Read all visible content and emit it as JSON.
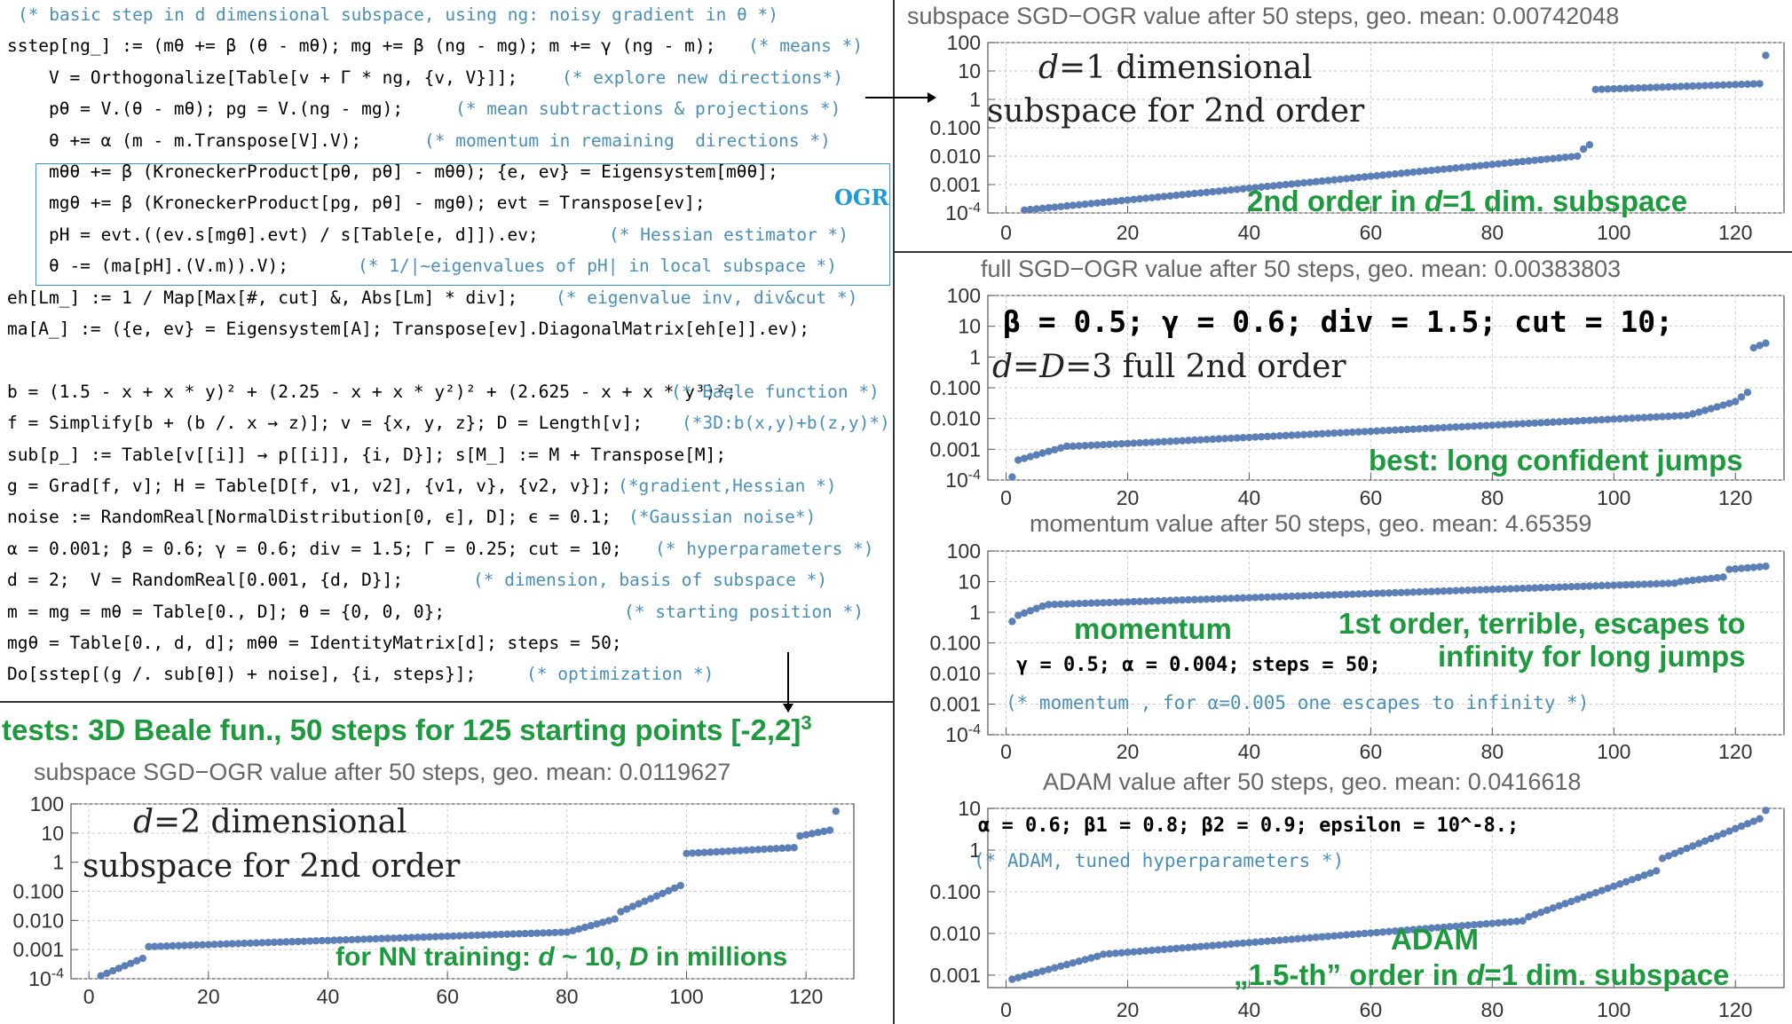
{
  "code_lines": [
    {
      "text": "",
      "comment": "(* basic step in d dimensional subspace, using ng: noisy gradient in θ *)"
    },
    {
      "text": "sstep[ng_] := (mθ += β (θ - mθ); mg += β (ng - mg); m += γ (ng - m);",
      "comment": "(* means *)"
    },
    {
      "text": "    V = Orthogonalize[Table[v + Γ * ng, {v, V}]];",
      "comment": "(* explore new directions*)"
    },
    {
      "text": "    pθ = V.(θ - mθ); pg = V.(ng - mg);",
      "comment": "(* mean subtractions & projections *)"
    },
    {
      "text": "    θ += α (m - m.Transpose[V].V);",
      "comment": "(* momentum in remaining  directions *)"
    },
    {
      "text": "    mθθ += β (KroneckerProduct[pθ, pθ] - mθθ); {e, ev} = Eigensystem[mθθ];",
      "comment": ""
    },
    {
      "text": "    mgθ += β (KroneckerProduct[pg, pθ] - mgθ); evt = Transpose[ev];",
      "comment": ""
    },
    {
      "text": "    pH = evt.((ev.s[mgθ].evt) / s[Table[e, d]]).ev;",
      "comment": "(* Hessian estimator *)"
    },
    {
      "text": "    θ -= (ma[pH].(V.m)).V);",
      "comment": "(* 1/|~eigenvalues of pH| in local subspace *)"
    },
    {
      "text": "eh[Lm_] := 1 / Map[Max[#, cut] &, Abs[Lm] * div];",
      "comment": "(* eigenvalue inv, div&cut *)"
    },
    {
      "text": "ma[A_] := ({e, ev} = Eigensystem[A]; Transpose[ev].DiagonalMatrix[eh[e]].ev);",
      "comment": ""
    },
    {
      "text": "",
      "comment": ""
    },
    {
      "text": "b = (1.5 - x + x * y)² + (2.25 - x + x * y²)² + (2.625 - x + x * y³)²;",
      "comment": "(* Baele function *)"
    },
    {
      "text": "f = Simplify[b + (b /. x → z)]; v = {x, y, z}; D = Length[v];",
      "comment": "(*3D:b(x,y)+b(z,y)*)"
    },
    {
      "text": "sub[p_] := Table[v[[i]] → p[[i]], {i, D}]; s[M_] := M + Transpose[M];",
      "comment": ""
    },
    {
      "text": "g = Grad[f, v]; H = Table[D[f, v1, v2], {v1, v}, {v2, v}];",
      "comment": "(*gradient,Hessian *)"
    },
    {
      "text": "noise := RandomReal[NormalDistribution[0, ϵ], D]; ϵ = 0.1;",
      "comment": "(*Gaussian noise*)"
    },
    {
      "text": "α = 0.001; β = 0.6; γ = 0.6; div = 1.5; Γ = 0.25; cut = 10;",
      "comment": "(* hyperparameters *)"
    },
    {
      "text": "d = 2;  V = RandomReal[0.001, {d, D}];",
      "comment": "(* dimension, basis of subspace *)"
    },
    {
      "text": "m = mg = mθ = Table[0., D]; θ = {0, 0, 0};",
      "comment": "(* starting position *)"
    },
    {
      "text": "mgθ = Table[0., d, d]; mθθ = IdentityMatrix[d]; steps = 50;",
      "comment": ""
    },
    {
      "text": "Do[sstep[(g /. sub[θ]) + noise], {i, steps}];",
      "comment": "(* optimization *)"
    }
  ],
  "ogr_label": "OGR",
  "tests_heading": "tests: 3D Beale fun., 50 steps for 125 starting points [-2,2]",
  "tests_sup": "3",
  "panels": {
    "p1": {
      "title": "subspace SGD−OGR value after 50 steps, geo. mean: 0.00742048",
      "serif1_a": "d",
      "serif1_b": "=1 dimensional",
      "serif2": "subspace for 2nd order",
      "green1_a": "2nd order in ",
      "green1_b": "d",
      "green1_c": "=1 dim. subspace"
    },
    "p2": {
      "title": "full SGD−OGR value after 50 steps, geo. mean: 0.00383803",
      "bold": "β = 0.5; γ = 0.6; div = 1.5; cut = 10;",
      "serif1_a": "d",
      "serif1_b": "=",
      "serif1_c": "D",
      "serif1_d": "=3 full 2nd order",
      "green1": "best: long confident jumps"
    },
    "p3": {
      "title": "momentum value after 50 steps, geo. mean: 4.65359",
      "green1": "momentum",
      "green2": "1st order, terrible, escapes to",
      "green3": "infinity for long jumps",
      "params": "γ = 0.5; α = 0.004; steps = 50;",
      "comment": "(* momentum , for α=0.005  one escapes to infinity *)"
    },
    "p4": {
      "title": "ADAM value after 50 steps, geo. mean: 0.0416618",
      "params": "α = 0.6; β1 = 0.8; β2 = 0.9; epsilon = 10^-8.;",
      "comment": "(* ADAM, tuned hyperparameters *)",
      "green1": "ADAM",
      "green2_a": "„1.5-th” order in ",
      "green2_b": "d",
      "green2_c": "=1 dim. subspace"
    },
    "p5": {
      "title": "subspace SGD−OGR value after 50 steps, geo. mean: 0.0119627",
      "serif1_a": "d",
      "serif1_b": "=2 dimensional",
      "serif2": "subspace for 2nd order",
      "green1_a": "for NN training: ",
      "green1_b": "d",
      "green1_c": " ~ 10, ",
      "green1_d": "D",
      "green1_e": " in millions"
    }
  },
  "chart_data": [
    {
      "type": "scatter",
      "id": "p1",
      "title": "subspace SGD−OGR value after 50 steps, geo. mean: 0.00742048",
      "x_ticks": [
        0,
        20,
        40,
        60,
        80,
        100,
        120
      ],
      "xlim": [
        -3,
        128
      ],
      "y_scale": "log",
      "y_ticks": [
        "100",
        "10",
        "1",
        "0.100",
        "0.010",
        "0.001",
        "10^-4"
      ],
      "ylim_log10": [
        -4,
        2
      ],
      "grid": true,
      "segments": [
        {
          "from": 3,
          "to": 94,
          "logy": [
            -3.9,
            -2.0
          ]
        },
        {
          "from": 95,
          "to": 96,
          "logy": [
            -1.75,
            -1.6
          ]
        },
        {
          "from": 97,
          "to": 124,
          "logy": [
            0.35,
            0.55
          ]
        },
        {
          "from": 125,
          "to": 125,
          "logy": [
            1.55,
            1.55
          ]
        }
      ]
    },
    {
      "type": "scatter",
      "id": "p2",
      "title": "full SGD−OGR value after 50 steps, geo. mean: 0.00383803",
      "x_ticks": [
        0,
        20,
        40,
        60,
        80,
        100,
        120
      ],
      "xlim": [
        -3,
        128
      ],
      "y_scale": "log",
      "y_ticks": [
        "100",
        "10",
        "1",
        "0.100",
        "0.010",
        "0.001",
        "10^-4"
      ],
      "ylim_log10": [
        -4,
        2
      ],
      "grid": true,
      "segments": [
        {
          "from": 1,
          "to": 1,
          "logy": [
            -3.9,
            -3.9
          ]
        },
        {
          "from": 2,
          "to": 10,
          "logy": [
            -3.35,
            -2.9
          ]
        },
        {
          "from": 11,
          "to": 112,
          "logy": [
            -2.9,
            -1.9
          ]
        },
        {
          "from": 113,
          "to": 120,
          "logy": [
            -1.85,
            -1.45
          ]
        },
        {
          "from": 121,
          "to": 122,
          "logy": [
            -1.3,
            -1.15
          ]
        },
        {
          "from": 123,
          "to": 125,
          "logy": [
            0.3,
            0.45
          ]
        }
      ]
    },
    {
      "type": "scatter",
      "id": "p3",
      "title": "momentum value after 50 steps, geo. mean: 4.65359",
      "x_ticks": [
        0,
        20,
        40,
        60,
        80,
        100,
        120
      ],
      "xlim": [
        -3,
        128
      ],
      "y_scale": "log",
      "y_ticks": [
        "100",
        "10",
        "1",
        "0.100",
        "0.010",
        "0.001",
        "10^-4"
      ],
      "ylim_log10": [
        -4,
        2
      ],
      "grid": true,
      "segments": [
        {
          "from": 1,
          "to": 1,
          "logy": [
            -0.3,
            -0.3
          ]
        },
        {
          "from": 2,
          "to": 6,
          "logy": [
            -0.1,
            0.2
          ]
        },
        {
          "from": 7,
          "to": 110,
          "logy": [
            0.25,
            0.95
          ]
        },
        {
          "from": 111,
          "to": 118,
          "logy": [
            1.0,
            1.15
          ]
        },
        {
          "from": 119,
          "to": 125,
          "logy": [
            1.4,
            1.5
          ]
        }
      ]
    },
    {
      "type": "scatter",
      "id": "p4",
      "title": "ADAM value after 50 steps, geo. mean: 0.0416618",
      "x_ticks": [
        0,
        20,
        40,
        60,
        80,
        100,
        120
      ],
      "xlim": [
        -3,
        128
      ],
      "y_scale": "log",
      "y_ticks": [
        "10",
        "1",
        "0.100",
        "0.010",
        "0.001"
      ],
      "ylim_log10": [
        -3.3,
        1
      ],
      "grid": true,
      "segments": [
        {
          "from": 1,
          "to": 15,
          "logy": [
            -3.1,
            -2.55
          ]
        },
        {
          "from": 16,
          "to": 85,
          "logy": [
            -2.5,
            -1.7
          ]
        },
        {
          "from": 86,
          "to": 107,
          "logy": [
            -1.6,
            -0.5
          ]
        },
        {
          "from": 108,
          "to": 124,
          "logy": [
            -0.2,
            0.75
          ]
        },
        {
          "from": 125,
          "to": 125,
          "logy": [
            0.95,
            0.95
          ]
        }
      ]
    },
    {
      "type": "scatter",
      "id": "p5",
      "title": "subspace SGD−OGR value after 50 steps, geo. mean: 0.0119627",
      "x_ticks": [
        0,
        20,
        40,
        60,
        80,
        100,
        120
      ],
      "xlim": [
        -3,
        128
      ],
      "y_scale": "log",
      "y_ticks": [
        "100",
        "10",
        "1",
        "0.100",
        "0.010",
        "0.001",
        "10^-4"
      ],
      "ylim_log10": [
        -4,
        2
      ],
      "grid": true,
      "segments": [
        {
          "from": 2,
          "to": 9,
          "logy": [
            -3.9,
            -3.3
          ]
        },
        {
          "from": 10,
          "to": 80,
          "logy": [
            -2.9,
            -2.4
          ]
        },
        {
          "from": 81,
          "to": 88,
          "logy": [
            -2.35,
            -1.95
          ]
        },
        {
          "from": 89,
          "to": 99,
          "logy": [
            -1.7,
            -0.8
          ]
        },
        {
          "from": 100,
          "to": 118,
          "logy": [
            0.3,
            0.5
          ]
        },
        {
          "from": 119,
          "to": 124,
          "logy": [
            0.9,
            1.1
          ]
        },
        {
          "from": 125,
          "to": 125,
          "logy": [
            1.75,
            1.75
          ]
        }
      ]
    }
  ]
}
